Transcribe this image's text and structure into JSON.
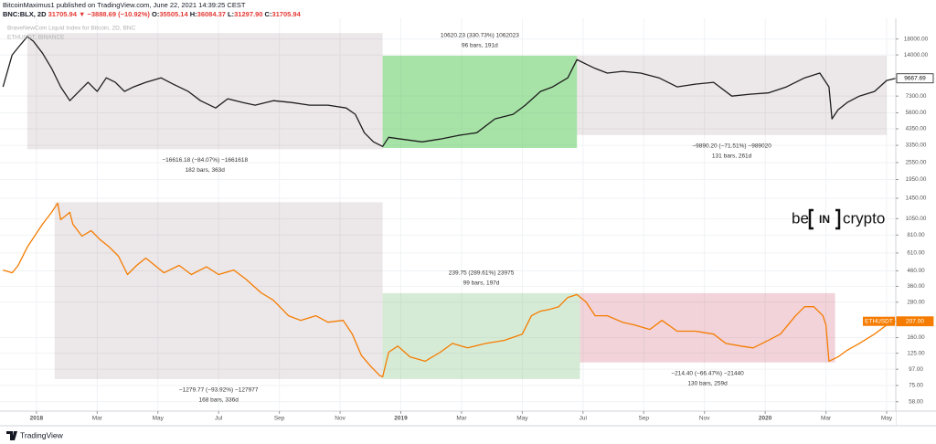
{
  "header": {
    "publisher": "BitcoinMaximus1 published on TradingView.com, June 22, 2021 14:39:25 CEST",
    "symbol": "BNC:BLX, 2D",
    "price": "31705.94",
    "change": "▼ −3888.69 (−10.92%)",
    "ohlc": [
      {
        "key": "O:",
        "value": "35505.14"
      },
      {
        "key": "H:",
        "value": "36084.37"
      },
      {
        "key": "L:",
        "value": "31297.90"
      },
      {
        "key": "C:",
        "value": "31705.94"
      }
    ]
  },
  "watermark": {
    "left": "be",
    "middle": "IN",
    "right": "crypto"
  },
  "footer": {
    "brand": "TradingView"
  },
  "chart_data": {
    "type": "line",
    "title": "BraveNewCoin Liquid Index for Bitcoin, 2D, BNC",
    "subtitle": "ETHUSDT, BINANCE",
    "log_scale": true,
    "grid": true,
    "xlim": [
      -1.2,
      28.3
    ],
    "ylim": [
      50,
      25000
    ],
    "xticks": [
      {
        "value": 0,
        "label": "2018"
      },
      {
        "value": 2,
        "label": "Mar"
      },
      {
        "value": 4,
        "label": "May"
      },
      {
        "value": 6,
        "label": "Jul"
      },
      {
        "value": 8,
        "label": "Sep"
      },
      {
        "value": 10,
        "label": "Nov"
      },
      {
        "value": 12,
        "label": "2019"
      },
      {
        "value": 14,
        "label": "Mar"
      },
      {
        "value": 16,
        "label": "May"
      },
      {
        "value": 18,
        "label": "Jul"
      },
      {
        "value": 20,
        "label": "Sep"
      },
      {
        "value": 22,
        "label": "Nov"
      },
      {
        "value": 24,
        "label": "2020"
      },
      {
        "value": 26,
        "label": "Mar"
      },
      {
        "value": 28,
        "label": "May"
      }
    ],
    "yticks": [
      {
        "value": 18000,
        "label": "18000.00"
      },
      {
        "value": 14000,
        "label": "14000.00"
      },
      {
        "value": 7300,
        "label": "7300.00"
      },
      {
        "value": 5600,
        "label": "5600.00"
      },
      {
        "value": 4350,
        "label": "4350.00"
      },
      {
        "value": 3350,
        "label": "3350.00"
      },
      {
        "value": 2550,
        "label": "2550.00"
      },
      {
        "value": 1950,
        "label": "1950.00"
      },
      {
        "value": 1450,
        "label": "1450.00"
      },
      {
        "value": 1050,
        "label": "1050.00"
      },
      {
        "value": 810,
        "label": "810.00"
      },
      {
        "value": 610,
        "label": "610.00"
      },
      {
        "value": 460,
        "label": "460.00"
      },
      {
        "value": 360,
        "label": "360.00"
      },
      {
        "value": 280,
        "label": "280.00"
      },
      {
        "value": 160,
        "label": "160.00"
      },
      {
        "value": 125,
        "label": "125.00"
      },
      {
        "value": 97,
        "label": "97.00"
      },
      {
        "value": 75,
        "label": "75.00"
      },
      {
        "value": 58,
        "label": "58.00"
      }
    ],
    "series": [
      {
        "name": "BLX",
        "color": "#1e1e1e",
        "last_label": "9667.69",
        "x": [
          -1.1,
          -0.8,
          -0.5,
          -0.3,
          -0.1,
          0.2,
          0.5,
          0.8,
          1.1,
          1.4,
          1.7,
          2.0,
          2.3,
          2.6,
          2.9,
          3.2,
          3.6,
          4.1,
          4.5,
          5.0,
          5.4,
          5.9,
          6.3,
          6.8,
          7.2,
          7.8,
          8.4,
          9.0,
          9.6,
          10.2,
          10.5,
          10.8,
          11.1,
          11.4,
          11.6,
          12.0,
          12.7,
          13.3,
          13.9,
          14.5,
          15.1,
          15.7,
          16.1,
          16.6,
          17.0,
          17.5,
          17.8,
          18.1,
          18.4,
          18.8,
          19.3,
          19.9,
          20.5,
          21.1,
          21.7,
          22.3,
          22.9,
          23.5,
          24.1,
          24.7,
          25.3,
          25.8,
          26.1,
          26.2,
          26.4,
          26.7,
          27.1,
          27.6,
          28.0,
          28.3
        ],
        "values": [
          8440,
          14000,
          16700,
          18700,
          17400,
          14400,
          11300,
          8440,
          6790,
          7850,
          9080,
          7850,
          9750,
          9080,
          7850,
          8440,
          9080,
          9750,
          8820,
          7850,
          6790,
          6050,
          7000,
          6600,
          6320,
          6790,
          6600,
          6320,
          6320,
          6050,
          5470,
          4090,
          3540,
          3290,
          3800,
          3700,
          3540,
          3700,
          3920,
          4090,
          5090,
          5470,
          6320,
          7850,
          8440,
          9750,
          13000,
          12100,
          11300,
          10500,
          10800,
          10500,
          9750,
          8440,
          8820,
          9080,
          7300,
          7520,
          7680,
          8440,
          9750,
          10500,
          8440,
          5090,
          5880,
          6600,
          7300,
          7850,
          9340,
          9668
        ]
      },
      {
        "name": "ETHUSDT",
        "color": "#f57c00",
        "last_label": "207.00",
        "x": [
          -1.1,
          -0.8,
          -0.6,
          -0.3,
          0.2,
          0.5,
          0.7,
          0.8,
          1.1,
          1.2,
          1.5,
          1.8,
          2.1,
          2.4,
          2.7,
          3.0,
          3.3,
          3.6,
          3.9,
          4.2,
          4.7,
          5.1,
          5.6,
          6.0,
          6.5,
          6.9,
          7.4,
          7.8,
          8.3,
          8.7,
          9.2,
          9.6,
          10.1,
          10.4,
          10.7,
          11.0,
          11.3,
          11.4,
          11.6,
          11.9,
          12.3,
          12.8,
          13.3,
          13.7,
          14.2,
          14.8,
          15.4,
          16.0,
          16.3,
          16.6,
          16.9,
          17.2,
          17.5,
          17.8,
          18.1,
          18.4,
          18.8,
          19.3,
          19.7,
          20.2,
          20.6,
          21.1,
          21.7,
          22.3,
          22.7,
          23.2,
          23.6,
          24.1,
          24.5,
          25.0,
          25.3,
          25.6,
          25.9,
          26.0,
          26.1,
          26.4,
          26.7,
          27.1,
          27.6,
          28.0,
          28.3
        ],
        "values": [
          466,
          446,
          501,
          670,
          962,
          1161,
          1343,
          1033,
          1161,
          962,
          796,
          869,
          752,
          670,
          580,
          434,
          501,
          563,
          501,
          446,
          501,
          434,
          490,
          434,
          466,
          403,
          325,
          289,
          226,
          210,
          226,
          204,
          210,
          169,
          121,
          102,
          88,
          86,
          127,
          140,
          118,
          110,
          127,
          146,
          136,
          146,
          153,
          169,
          226,
          243,
          250,
          261,
          302,
          316,
          281,
          226,
          226,
          204,
          195,
          182,
          210,
          177,
          177,
          169,
          146,
          140,
          136,
          153,
          169,
          226,
          261,
          261,
          226,
          195,
          110,
          118,
          131,
          146,
          169,
          195,
          207
        ]
      }
    ],
    "measures": [
      {
        "x": [
          -0.3,
          11.4
        ],
        "y": [
          19765,
          3149
        ],
        "color": "rgba(150,120,130,0.18)",
        "label": "−16616.18 (−84.07%) −1661618",
        "bars": "182 bars, 363d"
      },
      {
        "x": [
          11.4,
          17.8
        ],
        "y": [
          3212,
          13832
        ],
        "color": "rgba(80,200,80,0.5)",
        "label": "10620.23 (330.73%) 1062023",
        "bars": "96 bars, 191d"
      },
      {
        "x": [
          17.8,
          28.0
        ],
        "y": [
          13832,
          3942
        ],
        "color": "rgba(150,120,130,0.18)",
        "label": "−9890.20 (−71.51%) −989020",
        "bars": "131 bars, 261d"
      },
      {
        "x": [
          0.6,
          11.4
        ],
        "y": [
          1362,
          83
        ],
        "color": "rgba(150,120,130,0.18)",
        "label": "−1279.77 (−93.92%) −127977",
        "bars": "168 bars, 336d"
      },
      {
        "x": [
          11.4,
          17.9
        ],
        "y": [
          83,
          323
        ],
        "color": "rgba(120,190,120,0.3)",
        "label": "239.75 (289.61%) 23975",
        "bars": "99 bars, 197d"
      },
      {
        "x": [
          17.9,
          26.3
        ],
        "y": [
          323,
          108
        ],
        "color": "rgba(210,110,130,0.3)",
        "label": "−214.40 (−66.47%) −21440",
        "bars": "130 bars, 259d"
      }
    ]
  }
}
